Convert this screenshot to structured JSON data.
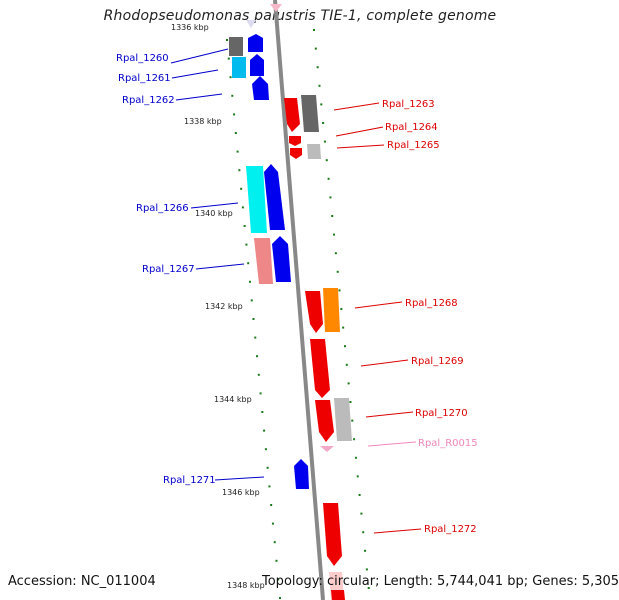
{
  "title": "Rhodopseudomonas palustris TIE-1, complete genome",
  "accession": "Accession: NC_011004",
  "topology": "Topology: circular; Length: 5,744,041 bp; Genes: 5,305",
  "kbp_labels": [
    "1336 kbp",
    "1338 kbp",
    "1340 kbp",
    "1342 kbp",
    "1344 kbp",
    "1346 kbp",
    "1348 kbp"
  ],
  "genes_left": [
    "Rpal_1260",
    "Rpal_1261",
    "Rpal_1262",
    "Rpal_1266",
    "Rpal_1267",
    "Rpal_1271"
  ],
  "genes_right": [
    "Rpal_1263",
    "Rpal_1264",
    "Rpal_1265",
    "Rpal_1268",
    "Rpal_1269",
    "Rpal_1270",
    "Rpal_R0015",
    "Rpal_1272"
  ],
  "colors": {
    "left_label": "#0000cc",
    "right_label": "#dd0000",
    "rna_label": "#ee88bb",
    "tick": "#1a7a1a",
    "backbone": "#888888"
  }
}
